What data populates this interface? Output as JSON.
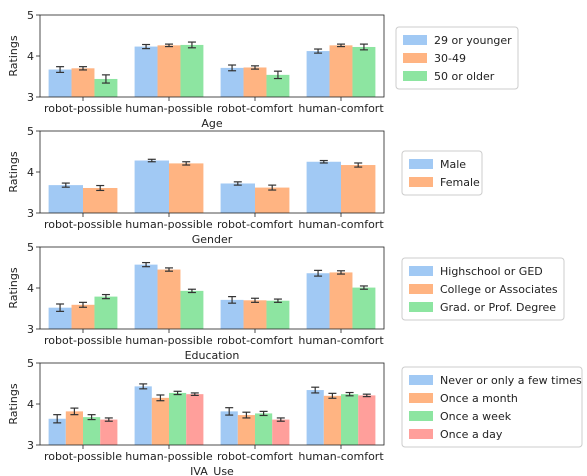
{
  "figure": {
    "palette": [
      "#a1c9f4",
      "#ffb482",
      "#8de5a1",
      "#ff9f9b"
    ],
    "error_bar_color": "#333333"
  },
  "chart_data": [
    {
      "type": "bar",
      "xlabel": "Age",
      "ylabel": "Ratings",
      "ylim": [
        3,
        5
      ],
      "yticks": [
        "3",
        "4",
        "5"
      ],
      "categories": [
        "robot-possible",
        "human-possible",
        "robot-comfort",
        "human-comfort"
      ],
      "series": [
        {
          "name": "29 or younger",
          "values": [
            3.67,
            4.23,
            3.71,
            4.12
          ],
          "errors": [
            0.07,
            0.05,
            0.07,
            0.05
          ]
        },
        {
          "name": "30-49",
          "values": [
            3.7,
            4.26,
            3.72,
            4.26
          ],
          "errors": [
            0.04,
            0.03,
            0.04,
            0.03
          ]
        },
        {
          "name": "50 or older",
          "values": [
            3.44,
            4.27,
            3.54,
            4.22
          ],
          "errors": [
            0.1,
            0.07,
            0.09,
            0.07
          ]
        }
      ],
      "legend": "right"
    },
    {
      "type": "bar",
      "xlabel": "Gender",
      "ylabel": "Ratings",
      "ylim": [
        3,
        5
      ],
      "yticks": [
        "3",
        "4",
        "5"
      ],
      "categories": [
        "robot-possible",
        "human-possible",
        "robot-comfort",
        "human-comfort"
      ],
      "series": [
        {
          "name": "Male",
          "values": [
            3.68,
            4.28,
            3.72,
            4.25
          ],
          "errors": [
            0.05,
            0.03,
            0.04,
            0.03
          ]
        },
        {
          "name": "Female",
          "values": [
            3.61,
            4.21,
            3.62,
            4.17
          ],
          "errors": [
            0.06,
            0.04,
            0.06,
            0.05
          ]
        }
      ],
      "legend": "right"
    },
    {
      "type": "bar",
      "xlabel": "Education",
      "ylabel": "Ratings",
      "ylim": [
        3,
        5
      ],
      "yticks": [
        "3",
        "4",
        "5"
      ],
      "categories": [
        "robot-possible",
        "human-possible",
        "robot-comfort",
        "human-comfort"
      ],
      "series": [
        {
          "name": "Highschool or GED",
          "values": [
            3.52,
            4.57,
            3.71,
            4.36
          ],
          "errors": [
            0.09,
            0.05,
            0.08,
            0.07
          ]
        },
        {
          "name": "College or Associates",
          "values": [
            3.59,
            4.45,
            3.7,
            4.38
          ],
          "errors": [
            0.06,
            0.04,
            0.05,
            0.04
          ]
        },
        {
          "name": "Grad. or Prof. Degree",
          "values": [
            3.79,
            3.93,
            3.69,
            4.01
          ],
          "errors": [
            0.05,
            0.04,
            0.04,
            0.04
          ]
        }
      ],
      "legend": "right"
    },
    {
      "type": "bar",
      "xlabel": "IVA_Use",
      "ylabel": "Ratings",
      "ylim": [
        3,
        5
      ],
      "yticks": [
        "3",
        "4",
        "5"
      ],
      "categories": [
        "robot-possible",
        "human-possible",
        "robot-comfort",
        "human-comfort"
      ],
      "series": [
        {
          "name": "Never or only a few times",
          "values": [
            3.64,
            4.43,
            3.82,
            4.34
          ],
          "errors": [
            0.1,
            0.06,
            0.09,
            0.07
          ]
        },
        {
          "name": "Once a month",
          "values": [
            3.82,
            4.15,
            3.73,
            4.2
          ],
          "errors": [
            0.08,
            0.07,
            0.07,
            0.06
          ]
        },
        {
          "name": "Once a week",
          "values": [
            3.68,
            4.27,
            3.77,
            4.24
          ],
          "errors": [
            0.06,
            0.04,
            0.05,
            0.04
          ]
        },
        {
          "name": "Once a day",
          "values": [
            3.62,
            4.24,
            3.62,
            4.21
          ],
          "errors": [
            0.04,
            0.03,
            0.04,
            0.03
          ]
        }
      ],
      "legend": "right"
    }
  ]
}
